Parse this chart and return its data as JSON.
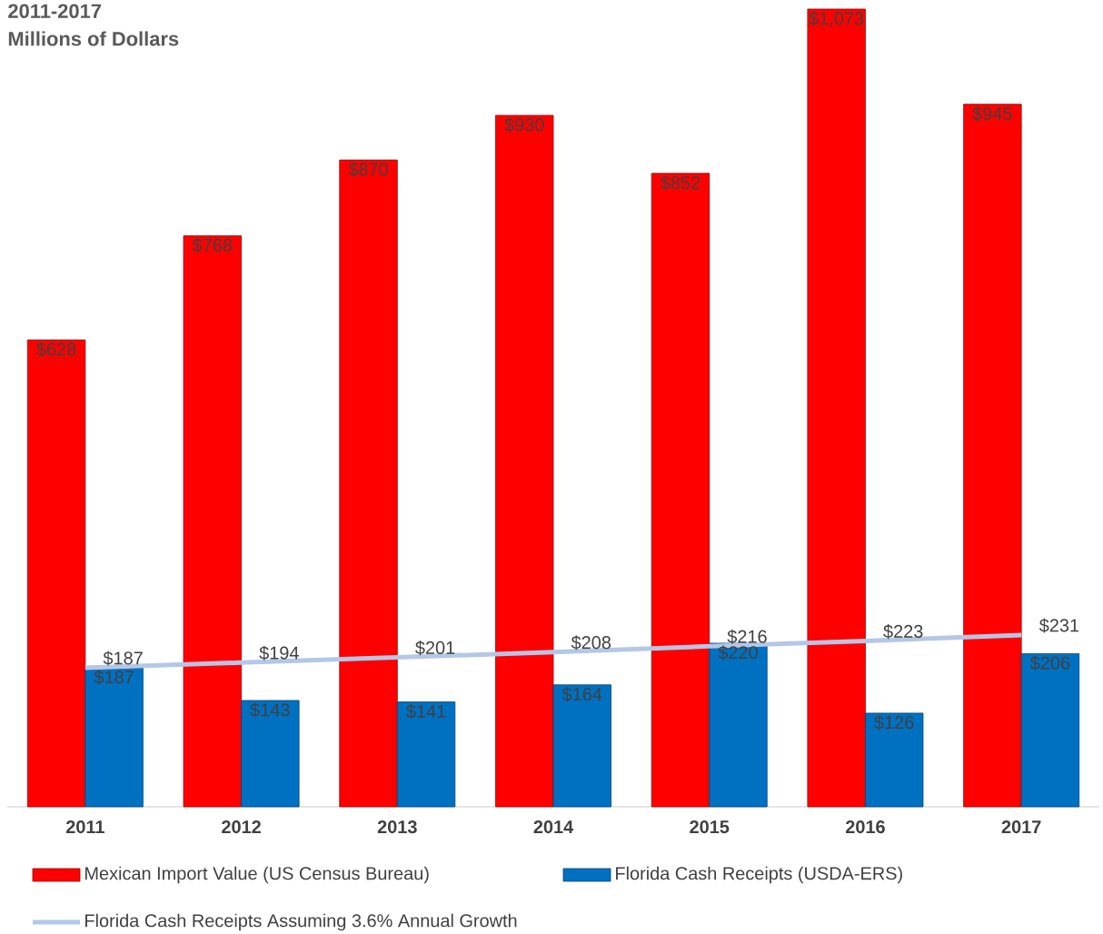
{
  "chart_data": {
    "type": "bar",
    "title": "2011-2017",
    "subtitle": "Millions of Dollars",
    "categories": [
      "2011",
      "2012",
      "2013",
      "2014",
      "2015",
      "2016",
      "2017"
    ],
    "series": [
      {
        "name": "Mexican Import Value (US Census Bureau)",
        "color": "#ff0000",
        "values": [
          628,
          768,
          870,
          930,
          852,
          1073,
          945
        ],
        "value_labels": [
          "$628",
          "$768",
          "$870",
          "$930",
          "$852",
          "$1,073",
          "$945"
        ]
      },
      {
        "name": "Florida Cash Receipts (USDA-ERS)",
        "color": "#0070c0",
        "values": [
          187,
          143,
          141,
          164,
          220,
          126,
          206
        ],
        "value_labels": [
          "$187",
          "$143",
          "$141",
          "$164",
          "$220",
          "$126",
          "$206"
        ]
      },
      {
        "name": "Florida Cash Receipts Assuming 3.6% Annual Growth",
        "type": "line",
        "color": "#b4c7e7",
        "values": [
          187,
          194,
          201,
          208,
          216,
          223,
          231
        ],
        "value_labels": [
          "$187",
          "$194",
          "$201",
          "$208",
          "$216",
          "$223",
          "$231"
        ]
      }
    ],
    "legend": "bottom"
  }
}
